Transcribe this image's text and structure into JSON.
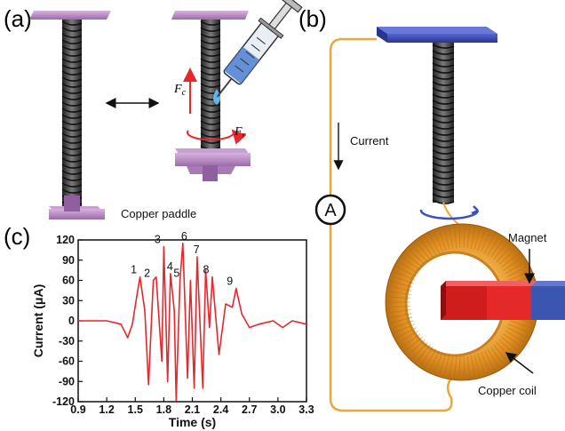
{
  "panels": {
    "a": {
      "label": "(a)",
      "paddle_label": "Copper paddle",
      "force_c_symbol": "F",
      "force_c_sub": "c",
      "force_r_symbol": "F",
      "force_r_sub": "r"
    },
    "b": {
      "label": "(b)",
      "current_label": "Current",
      "ammeter_symbol": "A",
      "magnet_label": "Magnet",
      "coil_label": "Copper coil"
    },
    "c": {
      "label": "(c)"
    }
  },
  "colors": {
    "plate": "#c9a0d4",
    "plate_blue": "#3b4bb5",
    "spring": "#333333",
    "wire": "#e8a93a",
    "coil": "#e29a2c",
    "magnet_red": "#d21f1f",
    "magnet_blue": "#3c55b0",
    "trace": "#e8262c",
    "force_arrow": "#e8262c",
    "rotation_blue": "#3a4fc2"
  },
  "chart_data": {
    "type": "line",
    "xlabel": "Time (s)",
    "ylabel": "Current (μA)",
    "xlim": [
      0.9,
      3.3
    ],
    "ylim": [
      -120,
      120
    ],
    "xticks": [
      "0.9",
      "1.2",
      "1.5",
      "1.8",
      "2.1",
      "2.4",
      "2.7",
      "3.0",
      "3.3"
    ],
    "yticks": [
      "120",
      "90",
      "60",
      "30",
      "0",
      "-30",
      "-60",
      "-90",
      "-120"
    ],
    "series": [
      {
        "x": [
          0.9,
          1.2,
          1.35,
          1.42,
          1.47,
          1.52,
          1.55,
          1.6,
          1.64,
          1.69,
          1.72,
          1.78,
          1.8,
          1.84,
          1.87,
          1.91,
          1.93,
          1.97,
          2.0,
          2.05,
          2.08,
          2.12,
          2.15,
          2.21,
          2.24,
          2.28,
          2.31,
          2.38,
          2.45,
          2.52,
          2.56,
          2.62,
          2.7,
          2.8,
          2.95,
          3.05,
          3.15,
          3.3
        ],
        "y": [
          0,
          0,
          -5,
          -25,
          -5,
          40,
          65,
          15,
          -95,
          60,
          65,
          -60,
          110,
          -90,
          70,
          15,
          -118,
          60,
          115,
          -85,
          60,
          -100,
          95,
          -100,
          75,
          -10,
          65,
          -50,
          25,
          20,
          48,
          10,
          -10,
          -5,
          0,
          -10,
          0,
          -5
        ]
      }
    ],
    "peak_labels": [
      {
        "text": "1",
        "x": 1.55,
        "y": 65
      },
      {
        "text": "2",
        "x": 1.69,
        "y": 60
      },
      {
        "text": "3",
        "x": 1.8,
        "y": 110
      },
      {
        "text": "4",
        "x": 1.93,
        "y": 70
      },
      {
        "text": "5",
        "x": 2.0,
        "y": 60
      },
      {
        "text": "6",
        "x": 2.08,
        "y": 115
      },
      {
        "text": "7",
        "x": 2.21,
        "y": 95
      },
      {
        "text": "8",
        "x": 2.31,
        "y": 65
      },
      {
        "text": "9",
        "x": 2.56,
        "y": 48
      }
    ]
  }
}
